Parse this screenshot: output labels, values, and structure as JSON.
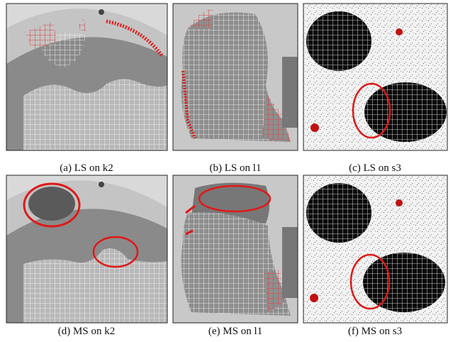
{
  "figure": {
    "panels": [
      {
        "caption": "(a) LS on k2"
      },
      {
        "caption": "(b) LS on l1"
      },
      {
        "caption": "(c) LS on s3"
      },
      {
        "caption": "(d) MS on k2"
      },
      {
        "caption": "(e) MS on l1"
      },
      {
        "caption": "(f) MS on s3"
      }
    ]
  }
}
